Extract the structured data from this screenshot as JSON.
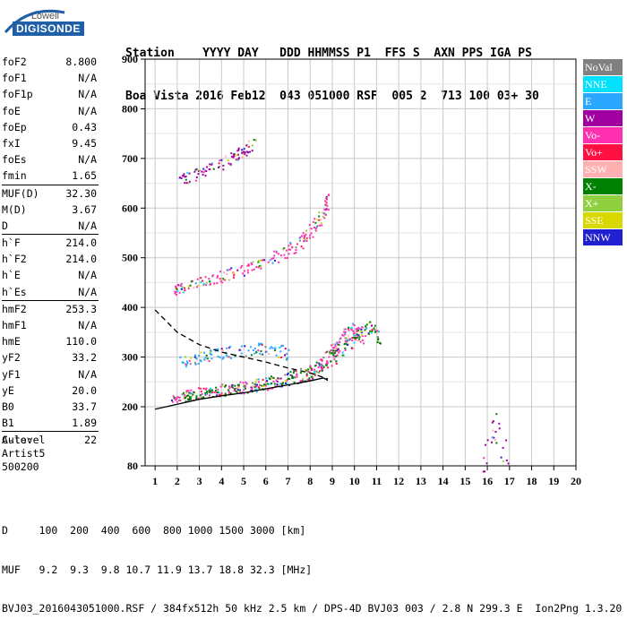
{
  "logo": {
    "line1": "Lowell",
    "line2": "DIGISONDE"
  },
  "header": {
    "labels": "Station    YYYY DAY   DDD HHMMSS P1  FFS S  AXN PPS IGA PS",
    "values": "Boa Vista 2016 Feb12  043 051000 RSF  005 2  713 100 03+ 30"
  },
  "params": {
    "group1": [
      {
        "name": "foF2",
        "value": "8.800"
      },
      {
        "name": "foF1",
        "value": "N/A"
      },
      {
        "name": "foF1p",
        "value": "N/A"
      },
      {
        "name": "foE",
        "value": "N/A"
      },
      {
        "name": "foEp",
        "value": "0.43"
      },
      {
        "name": "fxI",
        "value": "9.45"
      },
      {
        "name": "foEs",
        "value": "N/A"
      },
      {
        "name": "fmin",
        "value": "1.65"
      }
    ],
    "group2": [
      {
        "name": "MUF(D)",
        "value": "32.30"
      },
      {
        "name": "M(D)",
        "value": "3.67"
      },
      {
        "name": "D",
        "value": "N/A"
      }
    ],
    "group3": [
      {
        "name": "h`F",
        "value": "214.0"
      },
      {
        "name": "h`F2",
        "value": "214.0"
      },
      {
        "name": "h`E",
        "value": "N/A"
      },
      {
        "name": "h`Es",
        "value": "N/A"
      }
    ],
    "group4": [
      {
        "name": "hmF2",
        "value": "253.3"
      },
      {
        "name": "hmF1",
        "value": "N/A"
      },
      {
        "name": "hmE",
        "value": "110.0"
      },
      {
        "name": "yF2",
        "value": "33.2"
      },
      {
        "name": "yF1",
        "value": "N/A"
      },
      {
        "name": "yE",
        "value": "20.0"
      },
      {
        "name": "B0",
        "value": "33.7"
      },
      {
        "name": "B1",
        "value": "1.89"
      }
    ],
    "group5": [
      {
        "name": "C-level",
        "value": "22"
      }
    ]
  },
  "auto": {
    "line1": "Auto:",
    "line2": "Artist5",
    "line3": "500200"
  },
  "legend": [
    {
      "label": "NoVal",
      "color": "#808080"
    },
    {
      "label": "NNE",
      "color": "#00e0ff"
    },
    {
      "label": "E",
      "color": "#2aa8ff"
    },
    {
      "label": "W",
      "color": "#a000a0"
    },
    {
      "label": "Vo-",
      "color": "#ff30b0"
    },
    {
      "label": "Vo+",
      "color": "#ff1040"
    },
    {
      "label": "SSW",
      "color": "#ffb0b0"
    },
    {
      "label": "X-",
      "color": "#008000"
    },
    {
      "label": "X+",
      "color": "#90d040"
    },
    {
      "label": "SSE",
      "color": "#d8d800"
    },
    {
      "label": "NNW",
      "color": "#2020d0"
    }
  ],
  "footer": {
    "line1": "D     100  200  400  600  800 1000 1500 3000 [km]",
    "line2": "MUF   9.2  9.3  9.8 10.7 11.9 13.7 18.8 32.3 [MHz]",
    "line3": "BVJ03_2016043051000.RSF / 384fx512h 50 kHz 2.5 km / DPS-4D BVJ03 003 / 2.8 N 299.3 E  Ion2Png 1.3.20"
  },
  "chart_data": {
    "type": "scatter",
    "title": "",
    "xlabel": "",
    "ylabel": "",
    "xlim": [
      1,
      20
    ],
    "ylim": [
      80,
      900
    ],
    "x_ticks": [
      1,
      2,
      3,
      4,
      5,
      6,
      7,
      8,
      9,
      10,
      11,
      12,
      13,
      14,
      15,
      16,
      17,
      18,
      19,
      20
    ],
    "y_ticks": [
      80,
      200,
      300,
      400,
      500,
      600,
      700,
      800,
      900
    ],
    "grid": true,
    "traces": [
      {
        "name": "F2 O-trace",
        "color": "#ff30b0",
        "points": [
          [
            1.65,
            216
          ],
          [
            2.5,
            224
          ],
          [
            3.5,
            232
          ],
          [
            4.5,
            238
          ],
          [
            5.5,
            244
          ],
          [
            6.5,
            252
          ],
          [
            7.5,
            262
          ],
          [
            8.3,
            276
          ],
          [
            8.8,
            300
          ],
          [
            9.2,
            320
          ],
          [
            9.6,
            345
          ],
          [
            10.0,
            355
          ],
          [
            10.4,
            345
          ]
        ]
      },
      {
        "name": "F2 X-trace",
        "color": "#008000",
        "points": [
          [
            2.2,
            222
          ],
          [
            3.0,
            228
          ],
          [
            4.0,
            234
          ],
          [
            5.0,
            240
          ],
          [
            6.0,
            248
          ],
          [
            7.0,
            258
          ],
          [
            8.0,
            270
          ],
          [
            9.0,
            300
          ],
          [
            9.8,
            330
          ],
          [
            10.6,
            360
          ],
          [
            11.2,
            340
          ]
        ]
      },
      {
        "name": "Multihop 2F",
        "color": "#ff30b0",
        "points": [
          [
            1.8,
            435
          ],
          [
            2.5,
            445
          ],
          [
            3.5,
            458
          ],
          [
            4.5,
            470
          ],
          [
            5.5,
            485
          ],
          [
            6.5,
            505
          ],
          [
            7.5,
            530
          ],
          [
            8.0,
            555
          ],
          [
            8.5,
            585
          ],
          [
            8.8,
            620
          ]
        ]
      },
      {
        "name": "Multihop 3F",
        "color": "#a000a0",
        "points": [
          [
            2.0,
            655
          ],
          [
            3.0,
            672
          ],
          [
            4.0,
            690
          ],
          [
            4.8,
            712
          ],
          [
            5.5,
            735
          ]
        ]
      },
      {
        "name": "Es / spread echoes",
        "color": "#2aa8ff",
        "points": [
          [
            2.0,
            290
          ],
          [
            3.0,
            300
          ],
          [
            4.0,
            310
          ],
          [
            5.0,
            315
          ],
          [
            6.0,
            320
          ],
          [
            7.0,
            310
          ]
        ]
      },
      {
        "name": "Low-height echoes",
        "color": "#a000a0",
        "points": [
          [
            15.8,
            90
          ],
          [
            16.1,
            130
          ],
          [
            16.3,
            160
          ],
          [
            16.6,
            120
          ],
          [
            16.9,
            100
          ]
        ]
      }
    ],
    "profile": {
      "name": "Electron density profile",
      "color": "#000000",
      "points": [
        [
          1.0,
          195
        ],
        [
          2.0,
          205
        ],
        [
          3.0,
          215
        ],
        [
          4.0,
          222
        ],
        [
          5.0,
          228
        ],
        [
          6.0,
          236
        ],
        [
          7.0,
          244
        ],
        [
          8.0,
          252
        ],
        [
          8.6,
          258
        ],
        [
          8.8,
          253
        ]
      ]
    },
    "extrapolated_profile": {
      "name": "Topside extrapolation",
      "color": "#000000",
      "points": [
        [
          1.0,
          395
        ],
        [
          2.0,
          350
        ],
        [
          3.0,
          325
        ],
        [
          4.0,
          310
        ],
        [
          5.0,
          300
        ],
        [
          6.0,
          290
        ],
        [
          7.0,
          278
        ],
        [
          8.0,
          268
        ],
        [
          8.8,
          256
        ]
      ]
    }
  }
}
